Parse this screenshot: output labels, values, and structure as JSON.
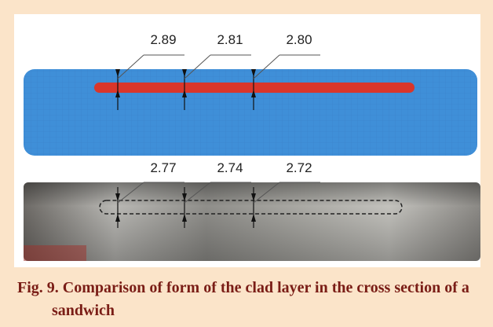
{
  "figure": {
    "top_labels": [
      "2.89",
      "2.81",
      "2.80"
    ],
    "bottom_labels": [
      "2.77",
      "2.74",
      "2.72"
    ],
    "caption": "Fig. 9. Comparison of form of the clad layer in the cross section of a sandwich"
  }
}
